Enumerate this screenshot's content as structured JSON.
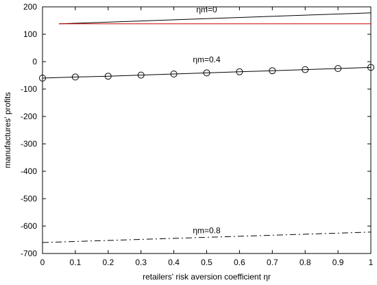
{
  "chart_data": {
    "type": "line",
    "xlabel": "retailers' risk aversion coefficient ηr",
    "ylabel": "manufactures' profits",
    "xlim": [
      0,
      1
    ],
    "ylim": [
      -700,
      200
    ],
    "x_ticks": [
      0,
      0.1,
      0.2,
      0.3,
      0.4,
      0.5,
      0.6,
      0.7,
      0.8,
      0.9,
      1
    ],
    "x_tick_labels": [
      "0",
      "0.1",
      "0.2",
      "0.3",
      "0.4",
      "0.5",
      "0.6",
      "0.7",
      "0.8",
      "0.9",
      "1"
    ],
    "y_ticks": [
      200,
      100,
      0,
      -100,
      -200,
      -300,
      -400,
      -500,
      -600,
      -700
    ],
    "y_tick_labels": [
      "200",
      "100",
      "0",
      "-100",
      "-200",
      "-300",
      "-400",
      "-500",
      "-600",
      "-700"
    ],
    "grid": false,
    "series": [
      {
        "name": "ηm=0",
        "color": "#000000",
        "style": "solid",
        "marker": "none",
        "x": [
          0.05,
          1
        ],
        "y": [
          138,
          178
        ]
      },
      {
        "color": "#cc0000",
        "style": "solid",
        "marker": "none",
        "x": [
          0.05,
          1
        ],
        "y": [
          138,
          138
        ]
      },
      {
        "name": "ηm=0.4",
        "color": "#000000",
        "style": "solid",
        "marker": "circle",
        "x": [
          0,
          0.1,
          0.2,
          0.3,
          0.4,
          0.5,
          0.6,
          0.7,
          0.8,
          0.9,
          1
        ],
        "y": [
          -60,
          -56,
          -53,
          -49,
          -45,
          -41,
          -37,
          -33,
          -29,
          -25,
          -21
        ]
      },
      {
        "name": "ηm=0.8",
        "color": "#000000",
        "style": "dashdot",
        "marker": "none",
        "x": [
          0,
          1
        ],
        "y": [
          -660,
          -622
        ]
      }
    ],
    "annotations": [
      {
        "text": "ηm=0",
        "x": 0.5,
        "y": 180
      },
      {
        "text": "ηm=0.4",
        "x": 0.5,
        "y": -3
      },
      {
        "text": "ηm=0.8",
        "x": 0.5,
        "y": -626
      }
    ]
  }
}
